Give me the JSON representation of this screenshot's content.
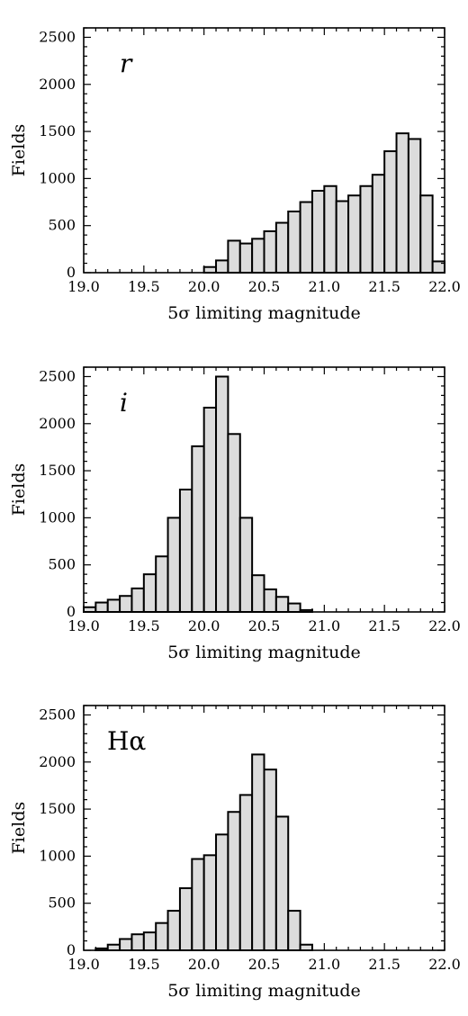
{
  "chart_data": [
    {
      "type": "bar",
      "panel_label": "r",
      "xlabel": "5σ limiting magnitude",
      "ylabel": "Fields",
      "xlim": [
        19.0,
        22.0
      ],
      "ylim": [
        0,
        2600
      ],
      "bin_width": 0.1,
      "bin_starts": [
        20.0,
        20.1,
        20.2,
        20.3,
        20.4,
        20.5,
        20.6,
        20.7,
        20.8,
        20.9,
        21.0,
        21.1,
        21.2,
        21.3,
        21.4,
        21.5,
        21.6,
        21.7,
        21.8,
        21.9
      ],
      "values": [
        60,
        130,
        340,
        310,
        360,
        440,
        530,
        650,
        750,
        870,
        920,
        760,
        820,
        920,
        1040,
        1290,
        1480,
        1420,
        820,
        120
      ],
      "x_ticks": [
        "19.0",
        "19.5",
        "20.0",
        "20.5",
        "21.0",
        "21.5",
        "22.0"
      ],
      "y_ticks": [
        "0",
        "500",
        "1000",
        "1500",
        "2000",
        "2500"
      ],
      "legend": "none",
      "grid": false
    },
    {
      "type": "bar",
      "panel_label": "i",
      "xlabel": "5σ limiting magnitude",
      "ylabel": "Fields",
      "xlim": [
        19.0,
        22.0
      ],
      "ylim": [
        0,
        2600
      ],
      "bin_width": 0.1,
      "bin_starts": [
        19.0,
        19.1,
        19.2,
        19.3,
        19.4,
        19.5,
        19.6,
        19.7,
        19.8,
        19.9,
        20.0,
        20.1,
        20.2,
        20.3,
        20.4,
        20.5,
        20.6,
        20.7,
        20.8
      ],
      "values": [
        50,
        100,
        130,
        170,
        250,
        400,
        590,
        1000,
        1300,
        1760,
        2170,
        2500,
        1890,
        1000,
        390,
        240,
        160,
        90,
        20
      ],
      "x_ticks": [
        "19.0",
        "19.5",
        "20.0",
        "20.5",
        "21.0",
        "21.5",
        "22.0"
      ],
      "y_ticks": [
        "0",
        "500",
        "1000",
        "1500",
        "2000",
        "2500"
      ],
      "legend": "none",
      "grid": false
    },
    {
      "type": "bar",
      "panel_label": "Hα",
      "xlabel": "5σ limiting magnitude",
      "ylabel": "Fields",
      "xlim": [
        19.0,
        22.0
      ],
      "ylim": [
        0,
        2600
      ],
      "bin_width": 0.1,
      "bin_starts": [
        19.1,
        19.2,
        19.3,
        19.4,
        19.5,
        19.6,
        19.7,
        19.8,
        19.9,
        20.0,
        20.1,
        20.2,
        20.3,
        20.4,
        20.5,
        20.6,
        20.7,
        20.8
      ],
      "values": [
        20,
        60,
        120,
        170,
        190,
        290,
        420,
        660,
        970,
        1010,
        1230,
        1470,
        1650,
        2080,
        1920,
        1420,
        420,
        60
      ],
      "x_ticks": [
        "19.0",
        "19.5",
        "20.0",
        "20.5",
        "21.0",
        "21.5",
        "22.0"
      ],
      "y_ticks": [
        "0",
        "500",
        "1000",
        "1500",
        "2000",
        "2500"
      ],
      "legend": "none",
      "grid": false
    }
  ],
  "colors": {
    "bar_fill": "#dcdcdc",
    "bar_edge": "#000000",
    "background": "#ffffff"
  }
}
